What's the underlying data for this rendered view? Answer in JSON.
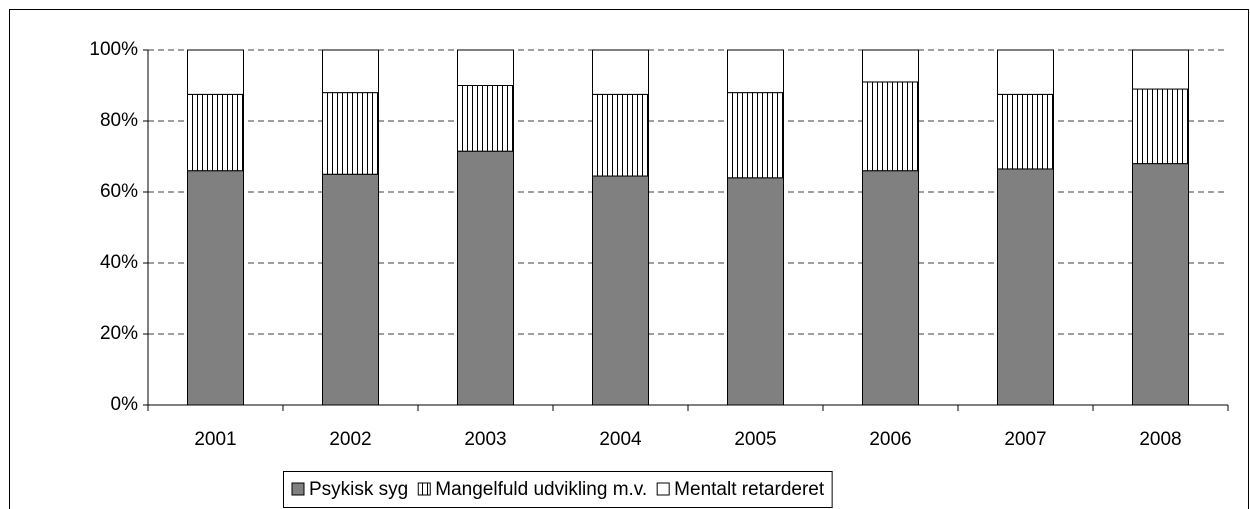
{
  "chart_data": {
    "type": "stacked-bar",
    "categories": [
      "2001",
      "2002",
      "2003",
      "2004",
      "2005",
      "2006",
      "2007",
      "2008"
    ],
    "series": [
      {
        "name": "Psykisk syg",
        "color": "#808080",
        "values": [
          66,
          65,
          71.5,
          64.5,
          64,
          66,
          66.5,
          68
        ]
      },
      {
        "name": "Mangelfuld udvikling m.v.",
        "color": "#ffffff",
        "pattern": "vertical-lines",
        "values": [
          21.5,
          23,
          18.5,
          23,
          24,
          25,
          21,
          21
        ]
      },
      {
        "name": "Mentalt retarderet",
        "color": "#ffffff",
        "values": [
          12.5,
          12,
          10,
          12.5,
          12,
          9,
          12.5,
          11
        ]
      }
    ],
    "ylim": [
      0,
      100
    ],
    "yticks": [
      {
        "value": 0,
        "label": "0%"
      },
      {
        "value": 20,
        "label": "20%"
      },
      {
        "value": 40,
        "label": "40%"
      },
      {
        "value": 60,
        "label": "60%"
      },
      {
        "value": 80,
        "label": "80%"
      },
      {
        "value": 100,
        "label": "100%"
      }
    ],
    "grid": true,
    "legend": "bottom"
  }
}
